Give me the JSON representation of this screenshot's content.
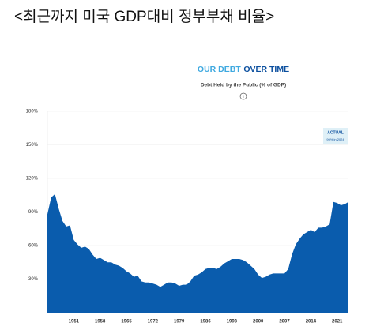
{
  "heading": "<최근까지 미국 GDP대비 정부부채 비율>",
  "chart_data": {
    "type": "area",
    "title": {
      "lead": "OUR DEBT",
      "rest": "OVER TIME",
      "lead_color": "#3fa9e0",
      "rest_color": "#0b4f9e"
    },
    "subtitle": "Debt Held by the Public (% of GDP)",
    "info": "i",
    "x": [
      1944,
      1945,
      1946,
      1947,
      1948,
      1949,
      1950,
      1951,
      1952,
      1953,
      1954,
      1955,
      1956,
      1957,
      1958,
      1959,
      1960,
      1961,
      1962,
      1963,
      1964,
      1965,
      1966,
      1967,
      1968,
      1969,
      1970,
      1971,
      1972,
      1973,
      1974,
      1975,
      1976,
      1977,
      1978,
      1979,
      1980,
      1981,
      1982,
      1983,
      1984,
      1985,
      1986,
      1987,
      1988,
      1989,
      1990,
      1991,
      1992,
      1993,
      1994,
      1995,
      1996,
      1997,
      1998,
      1999,
      2000,
      2001,
      2002,
      2003,
      2004,
      2005,
      2006,
      2007,
      2008,
      2009,
      2010,
      2011,
      2012,
      2013,
      2014,
      2015,
      2016,
      2017,
      2018,
      2019,
      2020,
      2021,
      2022,
      2023,
      2024
    ],
    "values": [
      88,
      103,
      106,
      93,
      82,
      77,
      78,
      65,
      61,
      58,
      59,
      57,
      52,
      48,
      49,
      47,
      45,
      45,
      43,
      42,
      40,
      37,
      35,
      32,
      33,
      28,
      27,
      27,
      26,
      25,
      23,
      25,
      27,
      27,
      26,
      24,
      25,
      25,
      28,
      33,
      34,
      36,
      39,
      40,
      40,
      39,
      41,
      44,
      46,
      48,
      48,
      48,
      47,
      45,
      42,
      39,
      34,
      31,
      32,
      34,
      35,
      35,
      35,
      35,
      39,
      52,
      61,
      66,
      70,
      72,
      74,
      72,
      76,
      76,
      77,
      79,
      99,
      98,
      96,
      97,
      99
    ],
    "color": "#0a5cad",
    "xlim": [
      1944,
      2024
    ],
    "xticks": [
      1951,
      1958,
      1965,
      1972,
      1979,
      1986,
      1993,
      2000,
      2007,
      2014,
      2021
    ],
    "ylim": [
      0,
      180
    ],
    "yticks": [
      {
        "value": 30,
        "label": "30%"
      },
      {
        "value": 60,
        "label": "60%"
      },
      {
        "value": 90,
        "label": "90%"
      },
      {
        "value": 120,
        "label": "120%"
      },
      {
        "value": 150,
        "label": "150%"
      },
      {
        "value": 180,
        "label": "180%"
      }
    ],
    "grid": true,
    "annotation": {
      "title": "ACTUAL",
      "detail": "99% in 2024"
    }
  }
}
